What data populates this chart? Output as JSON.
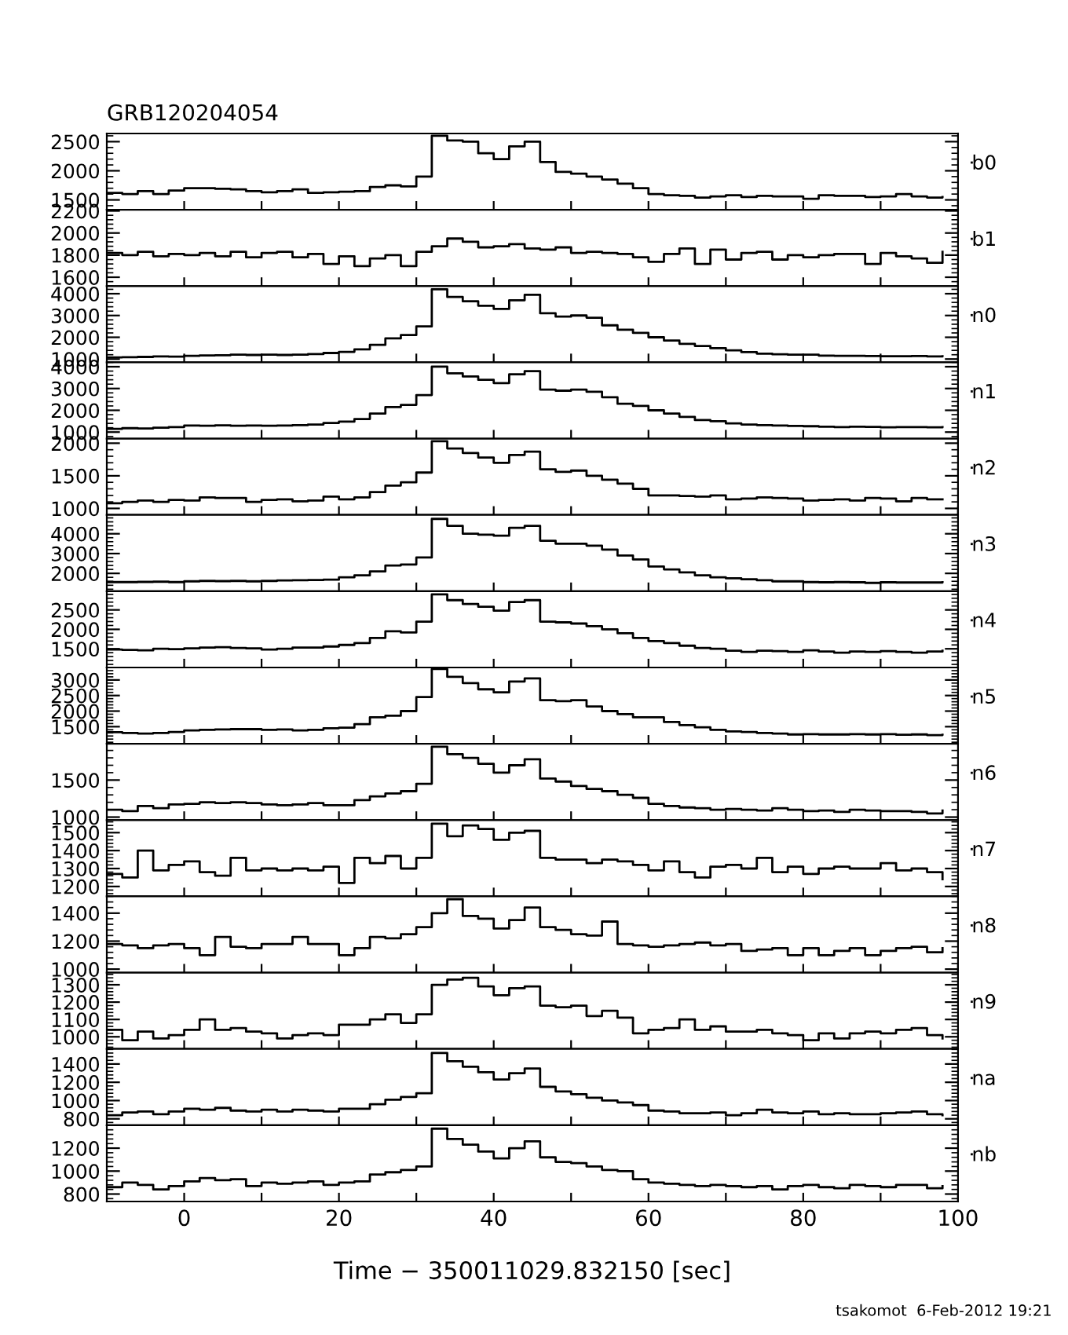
{
  "chart_data": [
    {
      "type": "step",
      "title": "GRB120204054",
      "tick_labels": "y",
      "xlim": [
        -10,
        100
      ],
      "ylim": [
        1330,
        2640
      ],
      "yticks": [
        1500,
        2000,
        2500
      ],
      "grid": false,
      "legend": "right",
      "marker": "none",
      "line_style": "solid",
      "x": [
        -10,
        -8,
        -6,
        -4,
        -2,
        0,
        2,
        4,
        6,
        8,
        10,
        12,
        14,
        16,
        18,
        20,
        22,
        24,
        26,
        28,
        30,
        32,
        34,
        36,
        38,
        40,
        42,
        44,
        46,
        48,
        50,
        52,
        54,
        56,
        58,
        60,
        62,
        64,
        66,
        68,
        70,
        72,
        74,
        76,
        78,
        80,
        82,
        84,
        86,
        88,
        90,
        92,
        94,
        96,
        98
      ],
      "series": [
        {
          "name": "b0",
          "color": "#000000",
          "values": [
            1620,
            1600,
            1650,
            1600,
            1660,
            1700,
            1700,
            1690,
            1680,
            1650,
            1630,
            1650,
            1680,
            1620,
            1630,
            1640,
            1650,
            1720,
            1750,
            1730,
            1900,
            2600,
            2520,
            2500,
            2300,
            2200,
            2420,
            2500,
            2150,
            1980,
            1950,
            1900,
            1850,
            1780,
            1700,
            1600,
            1580,
            1570,
            1540,
            1560,
            1580,
            1550,
            1570,
            1560,
            1560,
            1520,
            1580,
            1570,
            1570,
            1550,
            1560,
            1600,
            1560,
            1540,
            1550
          ]
        }
      ]
    },
    {
      "type": "step",
      "tick_labels": "y",
      "xlim": [
        -10,
        100
      ],
      "ylim": [
        1520,
        2210
      ],
      "yticks": [
        1600,
        1800,
        2000,
        2200
      ],
      "grid": false,
      "legend": "right",
      "marker": "none",
      "line_style": "solid",
      "x": [
        -10,
        -8,
        -6,
        -4,
        -2,
        0,
        2,
        4,
        6,
        8,
        10,
        12,
        14,
        16,
        18,
        20,
        22,
        24,
        26,
        28,
        30,
        32,
        34,
        36,
        38,
        40,
        42,
        44,
        46,
        48,
        50,
        52,
        54,
        56,
        58,
        60,
        62,
        64,
        66,
        68,
        70,
        72,
        74,
        76,
        78,
        80,
        82,
        84,
        86,
        88,
        90,
        92,
        94,
        96,
        98
      ],
      "series": [
        {
          "name": "b1",
          "color": "#000000",
          "values": [
            1820,
            1800,
            1830,
            1790,
            1810,
            1800,
            1820,
            1790,
            1830,
            1780,
            1820,
            1830,
            1780,
            1810,
            1720,
            1790,
            1700,
            1770,
            1800,
            1700,
            1830,
            1880,
            1950,
            1920,
            1870,
            1880,
            1900,
            1860,
            1850,
            1870,
            1820,
            1830,
            1820,
            1810,
            1780,
            1740,
            1810,
            1860,
            1720,
            1850,
            1760,
            1820,
            1830,
            1760,
            1800,
            1780,
            1800,
            1810,
            1810,
            1720,
            1820,
            1790,
            1770,
            1730,
            1830
          ]
        }
      ]
    },
    {
      "type": "step",
      "tick_labels": "y",
      "xlim": [
        -10,
        100
      ],
      "ylim": [
        850,
        4350
      ],
      "yticks": [
        1000,
        2000,
        3000,
        4000
      ],
      "grid": false,
      "legend": "right",
      "marker": "none",
      "line_style": "solid",
      "x": [
        -10,
        -8,
        -6,
        -4,
        -2,
        0,
        2,
        4,
        6,
        8,
        10,
        12,
        14,
        16,
        18,
        20,
        22,
        24,
        26,
        28,
        30,
        32,
        34,
        36,
        38,
        40,
        42,
        44,
        46,
        48,
        50,
        52,
        54,
        56,
        58,
        60,
        62,
        64,
        66,
        68,
        70,
        72,
        74,
        76,
        78,
        80,
        82,
        84,
        86,
        88,
        90,
        92,
        94,
        96,
        98
      ],
      "series": [
        {
          "name": "n0",
          "color": "#000000",
          "values": [
            1080,
            1090,
            1100,
            1120,
            1110,
            1150,
            1170,
            1180,
            1200,
            1190,
            1200,
            1190,
            1200,
            1230,
            1280,
            1330,
            1450,
            1650,
            1950,
            2100,
            2500,
            4200,
            3850,
            3650,
            3450,
            3300,
            3700,
            3950,
            3100,
            2950,
            3000,
            2900,
            2550,
            2350,
            2200,
            2000,
            1850,
            1700,
            1600,
            1500,
            1400,
            1320,
            1250,
            1220,
            1200,
            1200,
            1160,
            1150,
            1150,
            1140,
            1130,
            1130,
            1140,
            1120,
            1130
          ]
        }
      ]
    },
    {
      "type": "step",
      "tick_labels": "y",
      "xlim": [
        -10,
        100
      ],
      "ylim": [
        700,
        4200
      ],
      "yticks": [
        1000,
        2000,
        3000,
        4000
      ],
      "grid": false,
      "legend": "right",
      "marker": "none",
      "line_style": "solid",
      "x": [
        -10,
        -8,
        -6,
        -4,
        -2,
        0,
        2,
        4,
        6,
        8,
        10,
        12,
        14,
        16,
        18,
        20,
        22,
        24,
        26,
        28,
        30,
        32,
        34,
        36,
        38,
        40,
        42,
        44,
        46,
        48,
        50,
        52,
        54,
        56,
        58,
        60,
        62,
        64,
        66,
        68,
        70,
        72,
        74,
        76,
        78,
        80,
        82,
        84,
        86,
        88,
        90,
        92,
        94,
        96,
        98
      ],
      "series": [
        {
          "name": "n1",
          "color": "#000000",
          "values": [
            1150,
            1180,
            1170,
            1200,
            1230,
            1300,
            1290,
            1310,
            1290,
            1300,
            1290,
            1300,
            1320,
            1350,
            1420,
            1480,
            1600,
            1850,
            2150,
            2250,
            2700,
            4000,
            3700,
            3550,
            3400,
            3250,
            3650,
            3800,
            2950,
            2900,
            2950,
            2850,
            2600,
            2300,
            2200,
            2000,
            1850,
            1700,
            1550,
            1500,
            1400,
            1350,
            1320,
            1300,
            1280,
            1270,
            1250,
            1230,
            1250,
            1240,
            1220,
            1230,
            1230,
            1220,
            1230
          ]
        }
      ]
    },
    {
      "type": "step",
      "tick_labels": "y",
      "xlim": [
        -10,
        100
      ],
      "ylim": [
        900,
        2070
      ],
      "yticks": [
        1000,
        1500,
        2000
      ],
      "grid": false,
      "legend": "right",
      "marker": "none",
      "line_style": "solid",
      "x": [
        -10,
        -8,
        -6,
        -4,
        -2,
        0,
        2,
        4,
        6,
        8,
        10,
        12,
        14,
        16,
        18,
        20,
        22,
        24,
        26,
        28,
        30,
        32,
        34,
        36,
        38,
        40,
        42,
        44,
        46,
        48,
        50,
        52,
        54,
        56,
        58,
        60,
        62,
        64,
        66,
        68,
        70,
        72,
        74,
        76,
        78,
        80,
        82,
        84,
        86,
        88,
        90,
        92,
        94,
        96,
        98
      ],
      "series": [
        {
          "name": "n2",
          "color": "#000000",
          "values": [
            1080,
            1100,
            1120,
            1100,
            1130,
            1120,
            1170,
            1160,
            1160,
            1100,
            1130,
            1140,
            1110,
            1120,
            1180,
            1140,
            1170,
            1250,
            1350,
            1400,
            1550,
            2030,
            1920,
            1850,
            1780,
            1700,
            1820,
            1870,
            1600,
            1560,
            1580,
            1500,
            1440,
            1380,
            1300,
            1200,
            1200,
            1190,
            1180,
            1200,
            1140,
            1150,
            1170,
            1160,
            1150,
            1120,
            1130,
            1140,
            1120,
            1160,
            1150,
            1110,
            1160,
            1140,
            1140
          ]
        }
      ]
    },
    {
      "type": "step",
      "tick_labels": "y",
      "xlim": [
        -10,
        100
      ],
      "ylim": [
        1100,
        4950
      ],
      "yticks": [
        2000,
        3000,
        4000
      ],
      "grid": false,
      "legend": "right",
      "marker": "none",
      "line_style": "solid",
      "x": [
        -10,
        -8,
        -6,
        -4,
        -2,
        0,
        2,
        4,
        6,
        8,
        10,
        12,
        14,
        16,
        18,
        20,
        22,
        24,
        26,
        28,
        30,
        32,
        34,
        36,
        38,
        40,
        42,
        44,
        46,
        48,
        50,
        52,
        54,
        56,
        58,
        60,
        62,
        64,
        66,
        68,
        70,
        72,
        74,
        76,
        78,
        80,
        82,
        84,
        86,
        88,
        90,
        92,
        94,
        96,
        98
      ],
      "series": [
        {
          "name": "n3",
          "color": "#000000",
          "values": [
            1560,
            1560,
            1570,
            1580,
            1560,
            1600,
            1620,
            1610,
            1620,
            1600,
            1620,
            1640,
            1650,
            1660,
            1680,
            1800,
            1900,
            2100,
            2400,
            2450,
            2800,
            4750,
            4400,
            4000,
            3950,
            3900,
            4300,
            4400,
            3650,
            3500,
            3500,
            3400,
            3200,
            2900,
            2700,
            2350,
            2200,
            2050,
            1900,
            1800,
            1750,
            1700,
            1650,
            1600,
            1600,
            1560,
            1550,
            1560,
            1550,
            1520,
            1550,
            1540,
            1540,
            1540,
            1550
          ]
        }
      ]
    },
    {
      "type": "step",
      "tick_labels": "y",
      "xlim": [
        -10,
        100
      ],
      "ylim": [
        1020,
        2980
      ],
      "yticks": [
        1500,
        2000,
        2500
      ],
      "grid": false,
      "legend": "right",
      "marker": "none",
      "line_style": "solid",
      "x": [
        -10,
        -8,
        -6,
        -4,
        -2,
        0,
        2,
        4,
        6,
        8,
        10,
        12,
        14,
        16,
        18,
        20,
        22,
        24,
        26,
        28,
        30,
        32,
        34,
        36,
        38,
        40,
        42,
        44,
        46,
        48,
        50,
        52,
        54,
        56,
        58,
        60,
        62,
        64,
        66,
        68,
        70,
        72,
        74,
        76,
        78,
        80,
        82,
        84,
        86,
        88,
        90,
        92,
        94,
        96,
        98
      ],
      "series": [
        {
          "name": "n4",
          "color": "#000000",
          "values": [
            1480,
            1470,
            1460,
            1500,
            1490,
            1510,
            1530,
            1540,
            1520,
            1510,
            1480,
            1500,
            1530,
            1530,
            1560,
            1600,
            1650,
            1780,
            1950,
            1920,
            2200,
            2900,
            2750,
            2650,
            2580,
            2480,
            2700,
            2750,
            2200,
            2180,
            2150,
            2080,
            2000,
            1900,
            1780,
            1700,
            1650,
            1580,
            1520,
            1500,
            1450,
            1420,
            1450,
            1440,
            1420,
            1460,
            1430,
            1400,
            1430,
            1420,
            1440,
            1420,
            1400,
            1430,
            1450
          ]
        }
      ]
    },
    {
      "type": "step",
      "tick_labels": "y",
      "xlim": [
        -10,
        100
      ],
      "ylim": [
        950,
        3400
      ],
      "yticks": [
        1500,
        2000,
        2500,
        3000
      ],
      "grid": false,
      "legend": "right",
      "marker": "none",
      "line_style": "solid",
      "x": [
        -10,
        -8,
        -6,
        -4,
        -2,
        0,
        2,
        4,
        6,
        8,
        10,
        12,
        14,
        16,
        18,
        20,
        22,
        24,
        26,
        28,
        30,
        32,
        34,
        36,
        38,
        40,
        42,
        44,
        46,
        48,
        50,
        52,
        54,
        56,
        58,
        60,
        62,
        64,
        66,
        68,
        70,
        72,
        74,
        76,
        78,
        80,
        82,
        84,
        86,
        88,
        90,
        92,
        94,
        96,
        98
      ],
      "series": [
        {
          "name": "n5",
          "color": "#000000",
          "values": [
            1320,
            1300,
            1280,
            1300,
            1330,
            1380,
            1400,
            1410,
            1420,
            1420,
            1400,
            1410,
            1380,
            1400,
            1450,
            1470,
            1580,
            1800,
            1850,
            2000,
            2450,
            3350,
            3100,
            2900,
            2700,
            2600,
            2950,
            3050,
            2350,
            2320,
            2350,
            2150,
            2000,
            1900,
            1800,
            1800,
            1650,
            1550,
            1480,
            1400,
            1350,
            1330,
            1300,
            1280,
            1250,
            1260,
            1250,
            1250,
            1260,
            1250,
            1260,
            1240,
            1250,
            1230,
            1240
          ]
        }
      ]
    },
    {
      "type": "step",
      "tick_labels": "y",
      "xlim": [
        -10,
        100
      ],
      "ylim": [
        960,
        1990
      ],
      "yticks": [
        1000,
        1500
      ],
      "grid": false,
      "legend": "right",
      "marker": "none",
      "line_style": "solid",
      "x": [
        -10,
        -8,
        -6,
        -4,
        -2,
        0,
        2,
        4,
        6,
        8,
        10,
        12,
        14,
        16,
        18,
        20,
        22,
        24,
        26,
        28,
        30,
        32,
        34,
        36,
        38,
        40,
        42,
        44,
        46,
        48,
        50,
        52,
        54,
        56,
        58,
        60,
        62,
        64,
        66,
        68,
        70,
        72,
        74,
        76,
        78,
        80,
        82,
        84,
        86,
        88,
        90,
        92,
        94,
        96,
        98
      ],
      "series": [
        {
          "name": "n6",
          "color": "#000000",
          "values": [
            1100,
            1080,
            1150,
            1120,
            1170,
            1180,
            1200,
            1190,
            1200,
            1190,
            1170,
            1160,
            1170,
            1190,
            1160,
            1160,
            1230,
            1280,
            1320,
            1350,
            1450,
            1950,
            1850,
            1800,
            1720,
            1600,
            1700,
            1780,
            1520,
            1480,
            1420,
            1380,
            1350,
            1300,
            1260,
            1180,
            1150,
            1130,
            1120,
            1100,
            1110,
            1100,
            1090,
            1120,
            1100,
            1080,
            1090,
            1070,
            1100,
            1090,
            1080,
            1080,
            1070,
            1050,
            1090
          ]
        }
      ]
    },
    {
      "type": "step",
      "tick_labels": "y",
      "xlim": [
        -10,
        100
      ],
      "ylim": [
        1145,
        1570
      ],
      "yticks": [
        1200,
        1300,
        1400,
        1500
      ],
      "grid": false,
      "legend": "right",
      "marker": "none",
      "line_style": "solid",
      "x": [
        -10,
        -8,
        -6,
        -4,
        -2,
        0,
        2,
        4,
        6,
        8,
        10,
        12,
        14,
        16,
        18,
        20,
        22,
        24,
        26,
        28,
        30,
        32,
        34,
        36,
        38,
        40,
        42,
        44,
        46,
        48,
        50,
        52,
        54,
        56,
        58,
        60,
        62,
        64,
        66,
        68,
        70,
        72,
        74,
        76,
        78,
        80,
        82,
        84,
        86,
        88,
        90,
        92,
        94,
        96,
        98
      ],
      "series": [
        {
          "name": "n7",
          "color": "#000000",
          "values": [
            1270,
            1250,
            1400,
            1290,
            1320,
            1340,
            1280,
            1260,
            1360,
            1290,
            1300,
            1290,
            1300,
            1290,
            1310,
            1220,
            1360,
            1330,
            1370,
            1300,
            1360,
            1550,
            1480,
            1540,
            1520,
            1460,
            1500,
            1510,
            1360,
            1350,
            1350,
            1330,
            1350,
            1340,
            1320,
            1290,
            1340,
            1280,
            1250,
            1310,
            1320,
            1300,
            1360,
            1280,
            1310,
            1270,
            1300,
            1310,
            1300,
            1300,
            1330,
            1290,
            1300,
            1280,
            1240
          ]
        }
      ]
    },
    {
      "type": "step",
      "tick_labels": "y",
      "xlim": [
        -10,
        100
      ],
      "ylim": [
        975,
        1520
      ],
      "yticks": [
        1000,
        1200,
        1400
      ],
      "grid": false,
      "legend": "right",
      "marker": "none",
      "line_style": "solid",
      "x": [
        -10,
        -8,
        -6,
        -4,
        -2,
        0,
        2,
        4,
        6,
        8,
        10,
        12,
        14,
        16,
        18,
        20,
        22,
        24,
        26,
        28,
        30,
        32,
        34,
        36,
        38,
        40,
        42,
        44,
        46,
        48,
        50,
        52,
        54,
        56,
        58,
        60,
        62,
        64,
        66,
        68,
        70,
        72,
        74,
        76,
        78,
        80,
        82,
        84,
        86,
        88,
        90,
        92,
        94,
        96,
        98
      ],
      "series": [
        {
          "name": "n8",
          "color": "#000000",
          "values": [
            1180,
            1170,
            1150,
            1170,
            1180,
            1150,
            1100,
            1230,
            1160,
            1150,
            1180,
            1180,
            1230,
            1180,
            1180,
            1100,
            1150,
            1230,
            1220,
            1250,
            1300,
            1400,
            1500,
            1380,
            1360,
            1290,
            1350,
            1440,
            1300,
            1280,
            1250,
            1240,
            1340,
            1180,
            1170,
            1160,
            1170,
            1180,
            1190,
            1170,
            1180,
            1130,
            1140,
            1150,
            1100,
            1150,
            1100,
            1130,
            1150,
            1100,
            1130,
            1150,
            1160,
            1120,
            1150
          ]
        }
      ]
    },
    {
      "type": "step",
      "tick_labels": "y",
      "xlim": [
        -10,
        100
      ],
      "ylim": [
        930,
        1370
      ],
      "yticks": [
        1000,
        1100,
        1200,
        1300
      ],
      "grid": false,
      "legend": "right",
      "marker": "none",
      "line_style": "solid",
      "x": [
        -10,
        -8,
        -6,
        -4,
        -2,
        0,
        2,
        4,
        6,
        8,
        10,
        12,
        14,
        16,
        18,
        20,
        22,
        24,
        26,
        28,
        30,
        32,
        34,
        36,
        38,
        40,
        42,
        44,
        46,
        48,
        50,
        52,
        54,
        56,
        58,
        60,
        62,
        64,
        66,
        68,
        70,
        72,
        74,
        76,
        78,
        80,
        82,
        84,
        86,
        88,
        90,
        92,
        94,
        96,
        98
      ],
      "series": [
        {
          "name": "n9",
          "color": "#000000",
          "values": [
            1040,
            980,
            1030,
            990,
            1010,
            1040,
            1100,
            1040,
            1050,
            1030,
            1020,
            990,
            1010,
            1020,
            1010,
            1070,
            1070,
            1100,
            1130,
            1080,
            1130,
            1300,
            1330,
            1340,
            1290,
            1240,
            1280,
            1290,
            1180,
            1170,
            1180,
            1120,
            1150,
            1110,
            1020,
            1040,
            1050,
            1100,
            1040,
            1060,
            1030,
            1030,
            1040,
            1020,
            1010,
            980,
            1020,
            990,
            1020,
            1030,
            1020,
            1040,
            1050,
            1010,
            990
          ]
        }
      ]
    },
    {
      "type": "step",
      "tick_labels": "y",
      "xlim": [
        -10,
        100
      ],
      "ylim": [
        730,
        1565
      ],
      "yticks": [
        800,
        1000,
        1200,
        1400
      ],
      "grid": false,
      "legend": "right",
      "marker": "none",
      "line_style": "solid",
      "x": [
        -10,
        -8,
        -6,
        -4,
        -2,
        0,
        2,
        4,
        6,
        8,
        10,
        12,
        14,
        16,
        18,
        20,
        22,
        24,
        26,
        28,
        30,
        32,
        34,
        36,
        38,
        40,
        42,
        44,
        46,
        48,
        50,
        52,
        54,
        56,
        58,
        60,
        62,
        64,
        66,
        68,
        70,
        72,
        74,
        76,
        78,
        80,
        82,
        84,
        86,
        88,
        90,
        92,
        94,
        96,
        98
      ],
      "series": [
        {
          "name": "na",
          "color": "#000000",
          "values": [
            840,
            870,
            880,
            850,
            880,
            910,
            900,
            920,
            890,
            880,
            900,
            880,
            900,
            890,
            880,
            910,
            910,
            960,
            1010,
            1040,
            1080,
            1520,
            1430,
            1370,
            1310,
            1230,
            1300,
            1350,
            1150,
            1100,
            1070,
            1030,
            1000,
            980,
            950,
            890,
            880,
            860,
            860,
            870,
            840,
            860,
            900,
            870,
            860,
            880,
            850,
            860,
            850,
            850,
            860,
            870,
            880,
            850,
            840
          ]
        }
      ]
    },
    {
      "type": "step",
      "xlabel": "Time − 350011029.832150 [sec]",
      "annotations": [
        "tsakomot  6-Feb-2012 19:21"
      ],
      "xlim": [
        -10,
        100
      ],
      "ylim": [
        735,
        1400
      ],
      "yticks": [
        800,
        1000,
        1200
      ],
      "grid": false,
      "legend": "right",
      "marker": "none",
      "line_style": "solid",
      "x": [
        -10,
        -8,
        -6,
        -4,
        -2,
        0,
        2,
        4,
        6,
        8,
        10,
        12,
        14,
        16,
        18,
        20,
        22,
        24,
        26,
        28,
        30,
        32,
        34,
        36,
        38,
        40,
        42,
        44,
        46,
        48,
        50,
        52,
        54,
        56,
        58,
        60,
        62,
        64,
        66,
        68,
        70,
        72,
        74,
        76,
        78,
        80,
        82,
        84,
        86,
        88,
        90,
        92,
        94,
        96,
        98
      ],
      "xticks": [
        {
          "value": 0,
          "label": "0"
        },
        {
          "value": 10,
          "label": null
        },
        {
          "value": 20,
          "label": "20"
        },
        {
          "value": 30,
          "label": null
        },
        {
          "value": 40,
          "label": "40"
        },
        {
          "value": 50,
          "label": null
        },
        {
          "value": 60,
          "label": "60"
        },
        {
          "value": 70,
          "label": null
        },
        {
          "value": 80,
          "label": "80"
        },
        {
          "value": 90,
          "label": null
        },
        {
          "value": 100,
          "label": "100"
        }
      ],
      "series": [
        {
          "name": "nb",
          "color": "#000000",
          "values": [
            860,
            900,
            880,
            840,
            870,
            910,
            940,
            920,
            930,
            870,
            900,
            890,
            900,
            910,
            880,
            900,
            910,
            970,
            990,
            1010,
            1040,
            1370,
            1280,
            1230,
            1170,
            1110,
            1200,
            1260,
            1120,
            1080,
            1070,
            1040,
            1010,
            1000,
            930,
            900,
            890,
            880,
            870,
            880,
            870,
            860,
            870,
            840,
            870,
            880,
            860,
            850,
            880,
            870,
            860,
            880,
            880,
            850,
            870
          ]
        }
      ]
    }
  ]
}
